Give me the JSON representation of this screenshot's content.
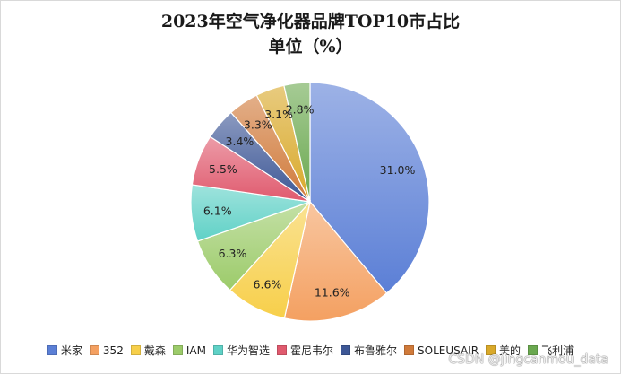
{
  "chart_data": {
    "type": "pie",
    "title": "2023年空气净化器品牌TOP10市占比",
    "subtitle": "单位（%）",
    "categories": [
      "米家",
      "352",
      "戴森",
      "IAM",
      "华为智选",
      "霍尼韦尔",
      "布鲁雅尔",
      "SOLEUSAIR",
      "美的",
      "飞利浦"
    ],
    "values": [
      31.0,
      11.6,
      6.6,
      6.3,
      6.1,
      5.5,
      3.4,
      3.3,
      3.1,
      2.8
    ],
    "data_labels": [
      "31.0%",
      "11.6%",
      "6.6%",
      "6.3%",
      "6.1%",
      "5.5%",
      "3.4%",
      "3.3%",
      "3.1%",
      "2.8%"
    ],
    "colors": [
      "#5b7fd6",
      "#f4a061",
      "#f7cf4a",
      "#9ccb6a",
      "#5fd1c6",
      "#e05a6e",
      "#3d5796",
      "#d07a3a",
      "#d9a92a",
      "#6aa84f"
    ],
    "start_angle": "top (12 o'clock), clockwise",
    "legend_position": "bottom"
  },
  "watermark": "CSDN @jingcanmou_data"
}
